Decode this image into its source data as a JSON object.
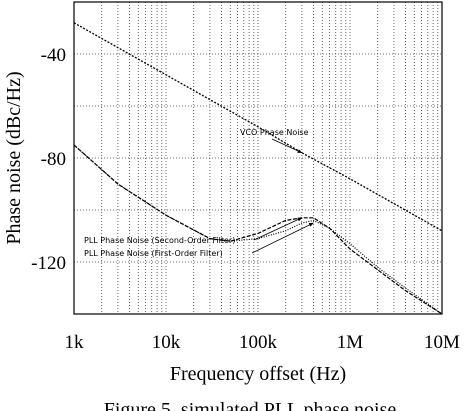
{
  "chart_data": {
    "type": "line",
    "title": "",
    "xlabel": "Frequency offset (Hz)",
    "ylabel": "Phase noise (dBc/Hz)",
    "x_scale": "log",
    "xlim": [
      1000,
      10000000
    ],
    "ylim": [
      -140,
      -20
    ],
    "x_ticks": [
      {
        "value": 1000,
        "label": "1k"
      },
      {
        "value": 10000,
        "label": "10k"
      },
      {
        "value": 100000,
        "label": "100k"
      },
      {
        "value": 1000000,
        "label": "1M"
      },
      {
        "value": 10000000,
        "label": "10M"
      }
    ],
    "y_ticks": [
      {
        "value": -40,
        "label": "-40"
      },
      {
        "value": -80,
        "label": "-80"
      },
      {
        "value": -120,
        "label": "-120"
      }
    ],
    "grid": true,
    "series": [
      {
        "name": "VCO Phase Noise",
        "x": [
          1000,
          10000,
          100000,
          300000,
          1000000,
          10000000
        ],
        "y": [
          -28,
          -48,
          -68,
          -78,
          -88,
          -108
        ]
      },
      {
        "name": "PLL Phase Noise (Second-Order Filter)",
        "x": [
          1000,
          3000,
          10000,
          30000,
          50000,
          100000,
          200000,
          300000,
          400000,
          600000,
          1000000,
          2000000,
          4000000,
          10000000
        ],
        "y": [
          -75,
          -90,
          -102,
          -111,
          -112,
          -109,
          -104,
          -103,
          -103,
          -107,
          -115,
          -123,
          -131,
          -140
        ]
      },
      {
        "name": "PLL Phase Noise (First-Order Filter)",
        "x": [
          1000,
          3000,
          10000,
          30000,
          50000,
          100000,
          200000,
          300000,
          400000,
          600000,
          1000000,
          2000000,
          4000000,
          10000000
        ],
        "y": [
          -75,
          -90,
          -102,
          -111,
          -112,
          -111,
          -108,
          -105,
          -104,
          -107,
          -113,
          -122,
          -130,
          -140
        ]
      }
    ],
    "annotations": [
      {
        "text": "VCO Phase Noise",
        "x": 300000,
        "y": -78
      },
      {
        "text": "PLL Phase Noise (Second-Order Filter)",
        "x": 300000,
        "y": -103
      },
      {
        "text": "PLL Phase Noise (First-Order Filter)",
        "x": 400000,
        "y": -105
      }
    ]
  },
  "caption": "Figure 5. simulated PLL phase noise"
}
